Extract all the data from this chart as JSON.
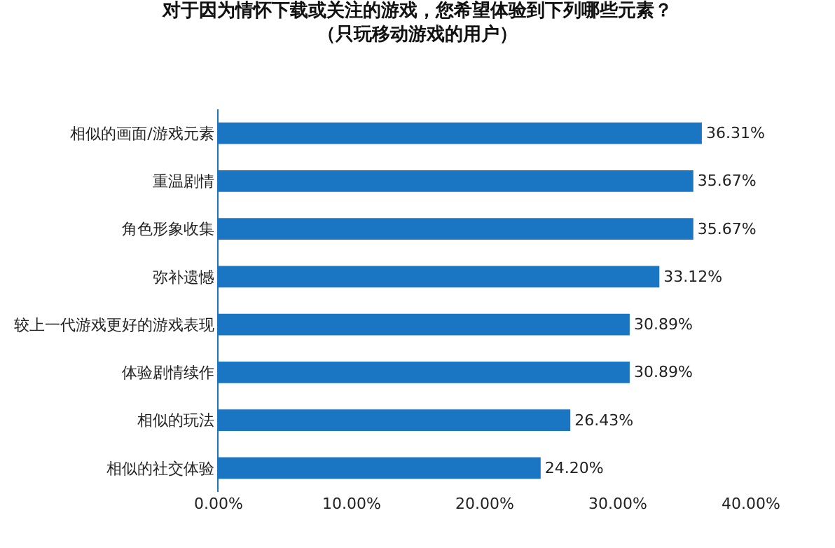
{
  "chart_data": {
    "type": "bar",
    "orientation": "horizontal",
    "title": "对于因为情怀下载或关注的游戏，您希望体验到下列哪些元素？",
    "subtitle": "（只玩移动游戏的用户）",
    "categories": [
      "相似的画面/游戏元素",
      "重温剧情",
      "角色形象收集",
      "弥补遗憾",
      "较上一代游戏更好的游戏表现",
      "体验剧情续作",
      "相似的玩法",
      "相似的社交体验"
    ],
    "values": [
      36.31,
      35.67,
      35.67,
      33.12,
      30.89,
      30.89,
      26.43,
      24.2
    ],
    "value_labels": [
      "36.31%",
      "35.67%",
      "35.67%",
      "33.12%",
      "30.89%",
      "30.89%",
      "26.43%",
      "24.20%"
    ],
    "color": "#1a75c2",
    "xlim": [
      0,
      40
    ],
    "xticks": [
      {
        "value": 0,
        "label": "0.00%"
      },
      {
        "value": 10,
        "label": "10.00%"
      },
      {
        "value": 20,
        "label": "20.00%"
      },
      {
        "value": 30,
        "label": "30.00%"
      },
      {
        "value": 40,
        "label": "40.00%"
      }
    ],
    "grid": false,
    "legend": false
  }
}
